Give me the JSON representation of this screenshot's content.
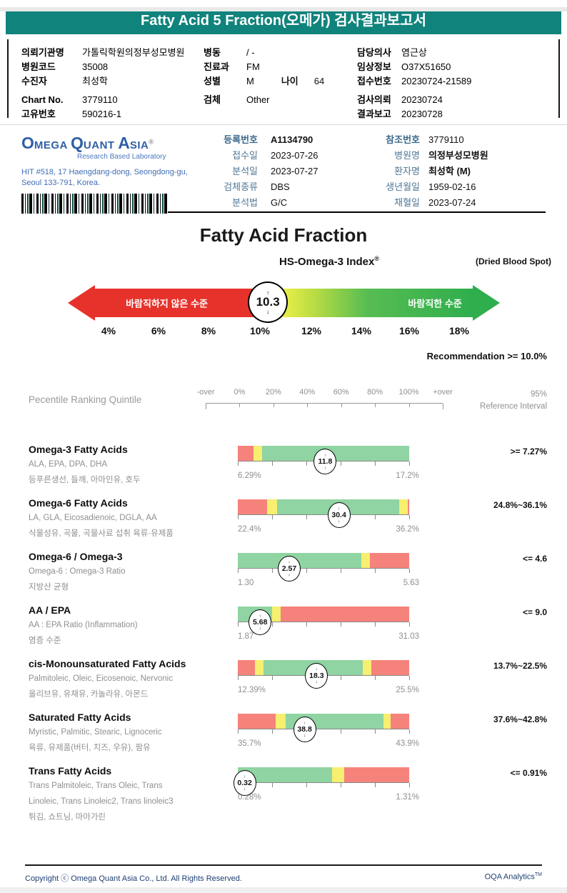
{
  "colors": {
    "teal": "#10837c",
    "bar_red": "#f5837b",
    "bar_yellow": "#f6ef6f",
    "bar_green": "#8fd4a2",
    "gauge_red": "#e7322b",
    "gauge_green": "#2fae4d",
    "logo_blue": "#2e5fa6",
    "footer_navy": "#1d3e73"
  },
  "page": {
    "title": "Fatty Acid 5 Fraction(오메가) 검사결과보고서"
  },
  "patient": {
    "col1": [
      {
        "label": "의뢰기관명",
        "value": "가톨릭학원의정부성모병원"
      },
      {
        "label": "병원코드",
        "value": "35008"
      },
      {
        "label": "수진자",
        "value": "최성학"
      },
      {
        "label": "Chart No.",
        "value": "3779110"
      },
      {
        "label": "고유번호",
        "value": "590216-1"
      }
    ],
    "col2": [
      {
        "label": "병동",
        "value": "/ -"
      },
      {
        "label": "진료과",
        "value": "FM"
      },
      {
        "label": "성별",
        "value": "M",
        "label2": "나이",
        "value2": "64"
      },
      {
        "label": "검체",
        "value": "Other"
      }
    ],
    "col3": [
      {
        "label": "담당의사",
        "value": "염근상"
      },
      {
        "label": "임상정보",
        "value": "O37X51650"
      },
      {
        "label": "접수번호",
        "value": "20230724-21589"
      },
      {
        "label": "검사의뢰",
        "value": "20230724"
      },
      {
        "label": "결과보고",
        "value": "20230728"
      }
    ]
  },
  "lab": {
    "logo_o": "O",
    "logo_mega": "MEGA ",
    "logo_q": "Q",
    "logo_uant": "UANT ",
    "logo_a": "A",
    "logo_sia": "SIA",
    "logo_reg": "®",
    "tagline": "Research Based Laboratory",
    "address1": "HIT #518, 17 Haengdang-dong, Seongdong-gu,",
    "address2": "Seoul 133-791, Korea.",
    "col1": [
      {
        "label": "등록번호",
        "value": "A1134790"
      },
      {
        "label": "접수일",
        "value": "2023-07-26"
      },
      {
        "label": "분석일",
        "value": "2023-07-27"
      },
      {
        "label": "검체종류",
        "value": "DBS"
      },
      {
        "label": "분석법",
        "value": "G/C"
      }
    ],
    "col2": [
      {
        "label": "참조번호",
        "value": "3779110"
      },
      {
        "label": "병원명",
        "value": "의정부성모병원"
      },
      {
        "label": "환자명",
        "value": "최성학 (M)"
      },
      {
        "label": "생년월일",
        "value": "1959-02-16"
      },
      {
        "label": "채혈일",
        "value": "2023-07-24"
      }
    ]
  },
  "section": {
    "title": "Fatty Acid Fraction",
    "index_title": "HS-Omega-3 Index",
    "index_reg": "®",
    "sample_type": "(Dried Blood Spot)",
    "gauge": {
      "value": "10.3",
      "marker_pct": 46.3,
      "left_label": "바람직하지 않은 수준",
      "right_label": "바람직한 수준",
      "scale": [
        "4%",
        "6%",
        "8%",
        "10%",
        "12%",
        "14%",
        "16%",
        "18%"
      ]
    },
    "recommendation": "Recommendation  >= 10.0%"
  },
  "panel": {
    "header": {
      "left": "Pecentile Ranking Quintile",
      "scale": [
        "-over",
        "0%",
        "20%",
        "40%",
        "60%",
        "80%",
        "100%",
        "+over"
      ],
      "right_top": "95%",
      "right_bottom": "Reference Interval"
    },
    "rows": [
      {
        "title": "Omega-3 Fatty Acids",
        "subtitle": "ALA, EPA, DPA, DHA",
        "korean": "등푸른생선, 들깨, 아마인유, 호두",
        "value": "11.8",
        "marker_pct": 51,
        "min": "6.29%",
        "max": "17.2%",
        "reference": ">= 7.27%",
        "segments": [
          {
            "c": "red",
            "to": 9
          },
          {
            "c": "yellow",
            "to": 14
          },
          {
            "c": "green",
            "to": 100
          }
        ]
      },
      {
        "title": "Omega-6 Fatty Acids",
        "subtitle": "LA, GLA, Eicosadienoic, DGLA, AA",
        "korean": "식물성유, 곡물, 곡물사료 섭취 육류·유제품",
        "value": "30.4",
        "marker_pct": 59,
        "min": "22.4%",
        "max": "36.2%",
        "reference": "24.8%~36.1%",
        "segments": [
          {
            "c": "red",
            "to": 17
          },
          {
            "c": "yellow",
            "to": 23
          },
          {
            "c": "green",
            "to": 94
          },
          {
            "c": "yellow",
            "to": 99
          },
          {
            "c": "red",
            "to": 100
          }
        ]
      },
      {
        "title": "Omega-6 / Omega-3",
        "subtitle": "Omega-6 : Omega-3 Ratio",
        "korean": "지방산 균형",
        "value": "2.57",
        "marker_pct": 30,
        "min": "1.30",
        "max": "5.63",
        "reference": "<= 4.6",
        "segments": [
          {
            "c": "green",
            "to": 72
          },
          {
            "c": "yellow",
            "to": 77
          },
          {
            "c": "red",
            "to": 100
          }
        ]
      },
      {
        "title": "AA / EPA",
        "subtitle": "AA : EPA Ratio (Inflammation)",
        "korean": "염증 수준",
        "value": "5.68",
        "marker_pct": 13,
        "min": "1.87",
        "max": "31.03",
        "reference": "<= 9.0",
        "segments": [
          {
            "c": "green",
            "to": 20
          },
          {
            "c": "yellow",
            "to": 25
          },
          {
            "c": "red",
            "to": 100
          }
        ]
      },
      {
        "title": "cis-Monounsaturated Fatty Acids",
        "subtitle": "Palmitoleic, Oleic, Eicosenoic, Nervonic",
        "korean": "올리브유, 유채유, 카놀라유, 아몬드",
        "value": "18.3",
        "marker_pct": 46,
        "min": "12.39%",
        "max": "25.5%",
        "reference": "13.7%~22.5%",
        "segments": [
          {
            "c": "red",
            "to": 10
          },
          {
            "c": "yellow",
            "to": 15
          },
          {
            "c": "green",
            "to": 73
          },
          {
            "c": "yellow",
            "to": 78
          },
          {
            "c": "red",
            "to": 100
          }
        ]
      },
      {
        "title": "Saturated Fatty Acids",
        "subtitle": "Myristic, Palmitic, Stearic, Lignoceric",
        "korean": "육류, 유제품(버터, 치즈, 우유), 팜유",
        "value": "38.8",
        "marker_pct": 39,
        "min": "35.7%",
        "max": "43.9%",
        "reference": "37.6%~42.8%",
        "segments": [
          {
            "c": "red",
            "to": 22
          },
          {
            "c": "yellow",
            "to": 28
          },
          {
            "c": "green",
            "to": 85
          },
          {
            "c": "yellow",
            "to": 89
          },
          {
            "c": "red",
            "to": 100
          }
        ]
      },
      {
        "title": "Trans Fatty Acids",
        "subtitle": "Trans Palmitoleic, Trans Oleic, Trans",
        "subtitle2": "Linoleic, Trans Linoleic2, Trans linoleic3",
        "korean": "튀김, 쇼트닝, 마아가린",
        "value": "0.32",
        "marker_pct": 4,
        "min": "0.28%",
        "max": "1.31%",
        "reference": "<= 0.91%",
        "segments": [
          {
            "c": "green",
            "to": 55
          },
          {
            "c": "yellow",
            "to": 62
          },
          {
            "c": "red",
            "to": 100
          }
        ]
      }
    ]
  },
  "footer": {
    "copyright": "Copyright ⓒ Omega Quant Asia Co., Ltd.  All Rights Reserved.",
    "brand": "OQA Analytics",
    "brand_tm": "TM"
  }
}
